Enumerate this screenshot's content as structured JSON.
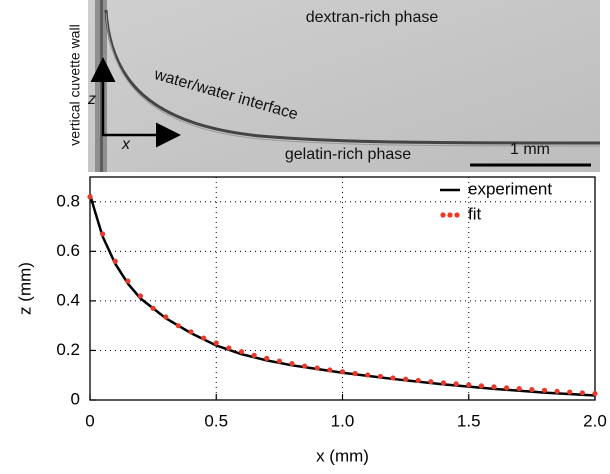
{
  "image_panel": {
    "top_phase": "dextran-rich phase",
    "bottom_phase": "gelatin-rich phase",
    "wall_label": "vertical cuvette wall",
    "interface_label": "water/water interface",
    "z_arrow_label": "z",
    "x_arrow_label": "x",
    "scale_bar_label": "1 mm"
  },
  "chart_data": {
    "type": "line",
    "xlabel": "x (mm)",
    "ylabel": "z (mm)",
    "xlim": [
      0,
      2
    ],
    "ylim": [
      0,
      0.9
    ],
    "xticks": [
      0,
      0.5,
      {
        "value": 1,
        "label": "1.0"
      },
      1.5,
      {
        "value": 2,
        "label": "2.0"
      }
    ],
    "yticks": [
      0,
      0.2,
      0.4,
      0.6,
      0.8
    ],
    "grid": true,
    "legend": "top-right",
    "series": [
      {
        "name": "experiment",
        "color": "#000000",
        "style": "line",
        "x": [
          0,
          0.02,
          0.05,
          0.1,
          0.15,
          0.2,
          0.3,
          0.4,
          0.5,
          0.6,
          0.7,
          0.8,
          0.9,
          1.0,
          1.2,
          1.4,
          1.6,
          1.8,
          2.0
        ],
        "values": [
          0.83,
          0.76,
          0.66,
          0.55,
          0.47,
          0.41,
          0.33,
          0.27,
          0.22,
          0.185,
          0.16,
          0.14,
          0.125,
          0.11,
          0.085,
          0.063,
          0.045,
          0.03,
          0.018
        ]
      },
      {
        "name": "fit",
        "color": "#e8392a",
        "style": "dots",
        "x": [
          0,
          0.05,
          0.1,
          0.15,
          0.2,
          0.25,
          0.3,
          0.35,
          0.4,
          0.45,
          0.5,
          0.55,
          0.6,
          0.65,
          0.7,
          0.75,
          0.8,
          0.85,
          0.9,
          0.95,
          1.0,
          1.05,
          1.1,
          1.15,
          1.2,
          1.25,
          1.3,
          1.35,
          1.4,
          1.45,
          1.5,
          1.55,
          1.6,
          1.65,
          1.7,
          1.75,
          1.8,
          1.85,
          1.9,
          1.95,
          2.0
        ],
        "values": [
          0.82,
          0.67,
          0.56,
          0.48,
          0.42,
          0.37,
          0.335,
          0.3,
          0.275,
          0.25,
          0.23,
          0.21,
          0.195,
          0.18,
          0.168,
          0.157,
          0.147,
          0.137,
          0.129,
          0.121,
          0.114,
          0.107,
          0.101,
          0.095,
          0.089,
          0.084,
          0.079,
          0.074,
          0.069,
          0.065,
          0.061,
          0.057,
          0.053,
          0.049,
          0.046,
          0.042,
          0.039,
          0.035,
          0.032,
          0.029,
          0.026
        ]
      }
    ]
  }
}
